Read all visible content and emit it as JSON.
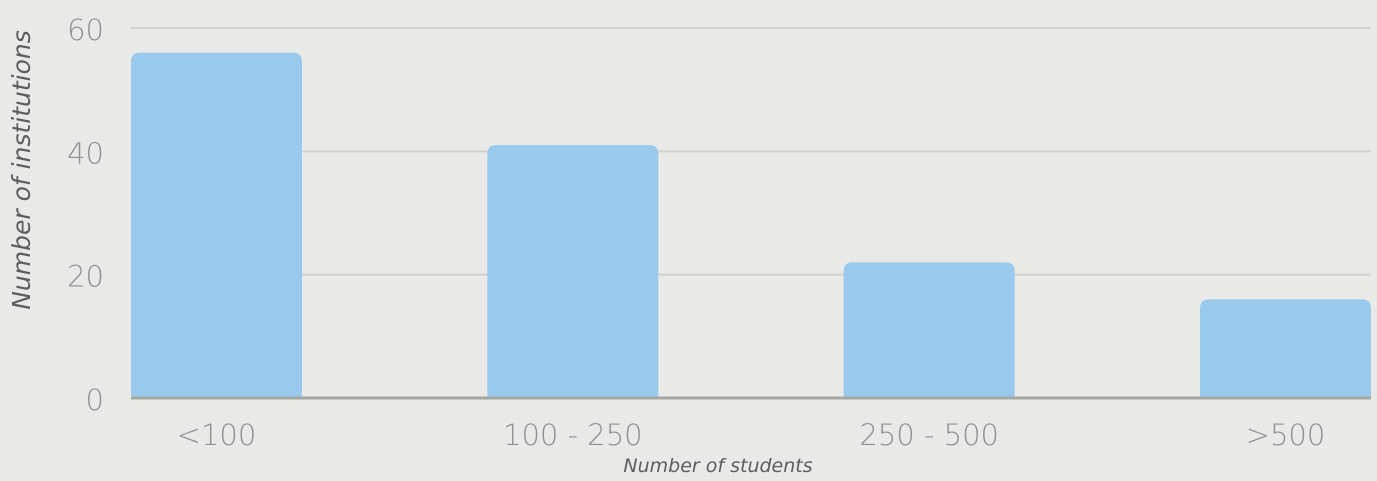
{
  "chart_data": {
    "type": "bar",
    "categories": [
      "<100",
      "100 - 250",
      "250 - 500",
      ">500"
    ],
    "values": [
      56,
      41,
      22,
      16
    ],
    "title": "",
    "xlabel": "Number of students",
    "ylabel": "Number of institutions",
    "ylim": [
      0,
      60
    ],
    "yticks": [
      "0",
      "20",
      "40",
      "60"
    ],
    "grid": true,
    "legend": "none",
    "colors": {
      "bar": "#99caed",
      "grid": "#cfd1cd",
      "baseline": "#a5a7a3",
      "tick_text": "#8f8f8f",
      "title_text": "#5d5d5d",
      "background": "#e9eae7"
    }
  }
}
